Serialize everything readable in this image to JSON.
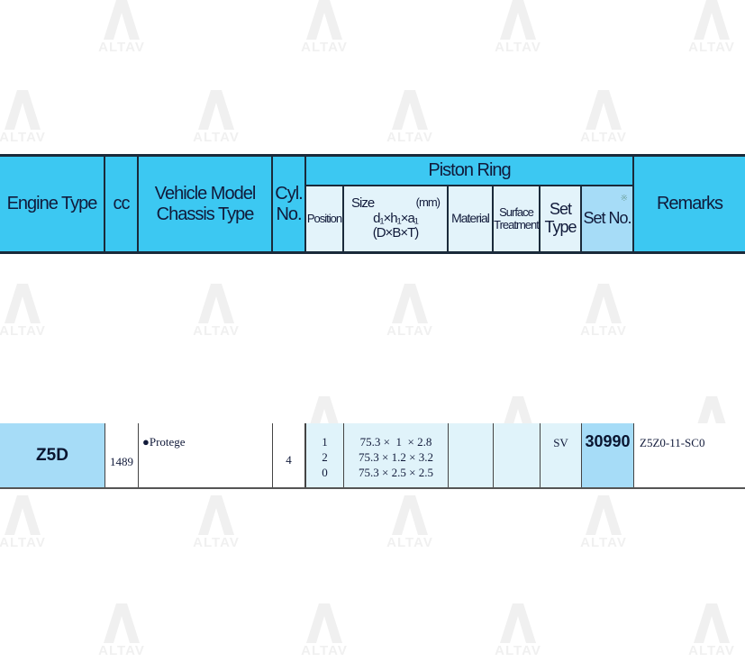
{
  "watermark": {
    "text": "ALTAV"
  },
  "header": {
    "engine_type": "Engine Type",
    "cc": "cc",
    "vehicle_model": "Vehicle Model",
    "chassis_type": "Chassis Type",
    "cyl_no_1": "Cyl.",
    "cyl_no_2": "No.",
    "piston_ring": "Piston Ring",
    "position": "Position",
    "size": "Size",
    "size_unit": "(mm)",
    "size_formula": "d₁×h₁×a₁",
    "size_formula2": "(D×B×T)",
    "material": "Material",
    "surface_1": "Surface",
    "surface_2": "Treatment",
    "set_type_1": "Set",
    "set_type_2": "Type",
    "set_no": "Set No.",
    "set_no_mark": "※",
    "remarks": "Remarks"
  },
  "row": {
    "engine_type": "Z5D",
    "cc": "1489",
    "vehicle_model": "●Protege",
    "cyl_no": "4",
    "positions": [
      "1",
      "2",
      "0"
    ],
    "sizes": [
      "75.3 ×  1  × 2.8",
      "75.3 × 1.2 × 3.2",
      "75.3 × 2.5 × 2.5"
    ],
    "material": "",
    "surface_treatment": "",
    "set_type": "SV",
    "set_no": "30990",
    "remarks": "Z5Z0-11-SC0"
  },
  "colors": {
    "header_blue": "#3cc8f2",
    "light_blue": "#e0f3fa",
    "set_no_blue": "#a6dcf7"
  }
}
